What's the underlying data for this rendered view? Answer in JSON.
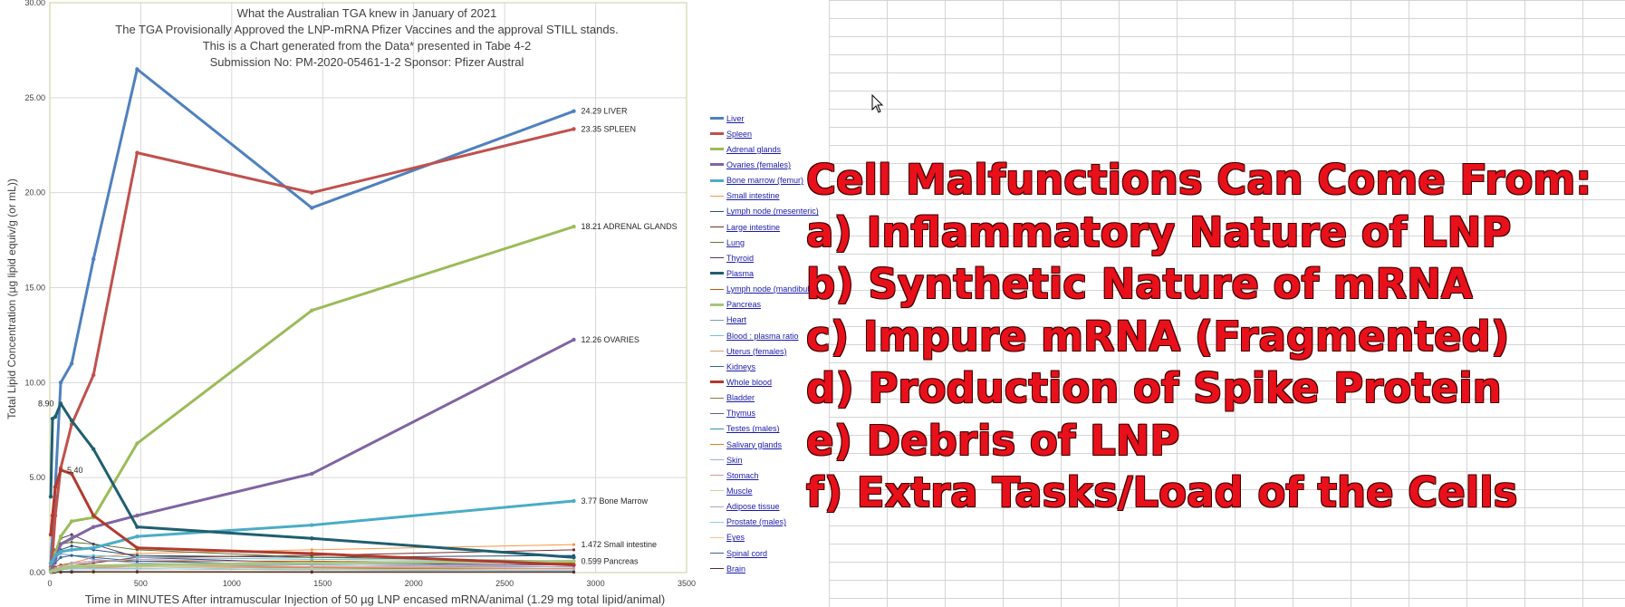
{
  "chart_data": {
    "type": "line",
    "title_lines": [
      "What the Australian TGA knew in January of 2021",
      "The TGA Provisionally Approved the LNP-mRNA Pfizer Vaccines and the approval STILL stands.",
      "This is a Chart generated from the Data* presented in Tabe 4-2",
      "Submission No: PM-2020-05461-1-2 Sponsor: Pfizer Austral"
    ],
    "xlabel": "Time in MINUTES After intramuscular Injection of 50 µg LNP encased mRNA/animal (1.29 mg total lipid/animal)",
    "ylabel": "Total Lipid Concentration (µg lipid equiv/g (or mL))",
    "xlim": [
      0,
      3500
    ],
    "ylim": [
      0,
      30
    ],
    "xticks": [
      "0",
      "500",
      "1000",
      "1500",
      "2000",
      "2500",
      "3000",
      "3500"
    ],
    "yticks": [
      "0.00",
      "5.00",
      "10.00",
      "15.00",
      "20.00",
      "25.00",
      "30.00"
    ],
    "grid": true,
    "legend_position": "right",
    "x": [
      5,
      15,
      30,
      60,
      120,
      240,
      480,
      1440,
      2880
    ],
    "series": [
      {
        "name": "Liver",
        "color": "#4f81bd",
        "width": 3,
        "values": [
          0.5,
          2.0,
          4.5,
          10.0,
          11.0,
          16.5,
          26.5,
          19.2,
          24.29
        ],
        "end_label": "24.29 LIVER"
      },
      {
        "name": "Spleen",
        "color": "#c0504d",
        "width": 3,
        "values": [
          0.3,
          1.0,
          3.0,
          5.5,
          7.8,
          10.4,
          22.1,
          20.0,
          23.35
        ],
        "end_label": "23.35 SPLEEN"
      },
      {
        "name": "Adrenal glands",
        "color": "#9bbb59",
        "width": 3,
        "values": [
          0.2,
          0.5,
          1.0,
          1.9,
          2.7,
          2.9,
          6.8,
          13.8,
          18.21
        ],
        "end_label": "18.21 ADRENAL GLANDS"
      },
      {
        "name": "Ovaries (females)",
        "color": "#8064a2",
        "width": 3,
        "values": [
          0.1,
          0.3,
          0.7,
          1.5,
          1.8,
          2.4,
          3.0,
          5.2,
          12.26
        ],
        "end_label": "12.26 OVARIES"
      },
      {
        "name": "Bone marrow (femur)",
        "color": "#4bacc6",
        "width": 3,
        "values": [
          0.5,
          0.6,
          0.9,
          1.1,
          1.2,
          1.3,
          1.9,
          2.5,
          3.77
        ],
        "end_label": "3.77 Bone Marrow"
      },
      {
        "name": "Small intestine",
        "color": "#f79646",
        "width": 1,
        "values": [
          0.05,
          0.1,
          0.2,
          0.3,
          0.5,
          0.8,
          1.0,
          1.2,
          1.472
        ],
        "end_label": "1.472 Small intestine"
      },
      {
        "name": "Lymph node (mesenteric)",
        "color": "#2c4d75",
        "width": 1,
        "values": [
          0.3,
          0.5,
          0.8,
          1.2,
          1.4,
          1.2,
          0.9,
          0.8,
          0.9
        ]
      },
      {
        "name": "Large intestine",
        "color": "#772c2a",
        "width": 1,
        "values": [
          0.05,
          0.1,
          0.2,
          0.3,
          0.4,
          0.5,
          0.8,
          0.9,
          1.2
        ]
      },
      {
        "name": "Lung",
        "color": "#5f7530",
        "width": 1,
        "values": [
          0.4,
          0.8,
          1.2,
          1.5,
          1.6,
          1.5,
          1.2,
          0.8,
          0.6
        ]
      },
      {
        "name": "Thyroid",
        "color": "#4d3b62",
        "width": 1,
        "values": [
          0.2,
          0.5,
          1.0,
          1.8,
          2.0,
          1.5,
          0.8,
          0.5,
          0.4
        ]
      },
      {
        "name": "Plasma",
        "color": "#1f5f6f",
        "width": 3,
        "values": [
          4.0,
          8.1,
          8.2,
          8.9,
          8.0,
          6.5,
          2.4,
          1.8,
          0.8
        ]
      },
      {
        "name": "Lymph node (mandibular)",
        "color": "#b65708",
        "width": 1,
        "values": [
          0.1,
          0.2,
          0.3,
          0.4,
          0.5,
          0.6,
          0.6,
          0.6,
          0.5
        ]
      },
      {
        "name": "Pancreas",
        "color": "#a9c47f",
        "width": 3,
        "values": [
          0.05,
          0.1,
          0.1,
          0.2,
          0.3,
          0.35,
          0.4,
          0.5,
          0.599
        ],
        "end_label": "0.599 Pancreas"
      },
      {
        "name": "Heart",
        "color": "#7c98c9",
        "width": 1,
        "values": [
          0.3,
          0.5,
          0.8,
          1.0,
          0.9,
          0.7,
          0.5,
          0.3,
          0.2
        ]
      },
      {
        "name": "Blood : plasma ratio",
        "color": "#6fbfd0",
        "width": 1,
        "values": [
          0.5,
          0.6,
          0.7,
          0.8,
          0.9,
          0.9,
          0.8,
          0.7,
          0.6
        ]
      },
      {
        "name": "Uterus (females)",
        "color": "#d6a070",
        "width": 1,
        "values": [
          0.05,
          0.1,
          0.2,
          0.3,
          0.4,
          0.4,
          0.4,
          0.3,
          0.3
        ]
      },
      {
        "name": "Kidneys",
        "color": "#31609b",
        "width": 1,
        "values": [
          0.1,
          0.3,
          0.5,
          0.8,
          0.9,
          0.8,
          0.6,
          0.4,
          0.3
        ]
      },
      {
        "name": "Whole blood",
        "color": "#b03a2e",
        "width": 3,
        "values": [
          2.0,
          3.0,
          4.5,
          5.4,
          5.2,
          3.0,
          1.3,
          1.0,
          0.4
        ],
        "point_label": "5.40"
      },
      {
        "name": "Bladder",
        "color": "#8a7a3c",
        "width": 1,
        "values": [
          0.02,
          0.05,
          0.1,
          0.2,
          0.3,
          0.3,
          0.3,
          0.2,
          0.2
        ]
      },
      {
        "name": "Thymus",
        "color": "#6b5a88",
        "width": 1,
        "values": [
          0.02,
          0.05,
          0.1,
          0.15,
          0.2,
          0.2,
          0.2,
          0.15,
          0.1
        ]
      },
      {
        "name": "Testes (males)",
        "color": "#2e8fa6",
        "width": 1,
        "values": [
          0.01,
          0.02,
          0.04,
          0.06,
          0.08,
          0.08,
          0.07,
          0.06,
          0.05
        ]
      },
      {
        "name": "Salivary glands",
        "color": "#e07b22",
        "width": 1,
        "values": [
          0.05,
          0.1,
          0.2,
          0.3,
          0.35,
          0.3,
          0.3,
          0.25,
          0.2
        ]
      },
      {
        "name": "Skin",
        "color": "#9bb0d6",
        "width": 1,
        "values": [
          0.01,
          0.05,
          0.1,
          0.2,
          0.3,
          0.35,
          0.4,
          0.4,
          0.3
        ]
      },
      {
        "name": "Stomach",
        "color": "#d99694",
        "width": 1,
        "values": [
          0.02,
          0.05,
          0.1,
          0.15,
          0.2,
          0.25,
          0.3,
          0.3,
          0.2
        ]
      },
      {
        "name": "Muscle",
        "color": "#c3d69b",
        "width": 1,
        "values": [
          0.05,
          0.1,
          0.2,
          0.3,
          0.4,
          0.4,
          0.3,
          0.2,
          0.1
        ]
      },
      {
        "name": "Adipose tissue",
        "color": "#b3a2c7",
        "width": 1,
        "values": [
          0.05,
          0.1,
          0.2,
          0.3,
          0.5,
          0.6,
          0.7,
          0.5,
          0.3
        ]
      },
      {
        "name": "Prostate (males)",
        "color": "#93cddd",
        "width": 1,
        "values": [
          0.02,
          0.05,
          0.1,
          0.15,
          0.2,
          0.2,
          0.2,
          0.15,
          0.1
        ]
      },
      {
        "name": "Eyes",
        "color": "#fac090",
        "width": 1,
        "values": [
          0.01,
          0.02,
          0.03,
          0.05,
          0.06,
          0.07,
          0.08,
          0.07,
          0.05
        ]
      },
      {
        "name": "Spinal cord",
        "color": "#3d5f8a",
        "width": 1,
        "values": [
          0.01,
          0.02,
          0.03,
          0.04,
          0.05,
          0.05,
          0.05,
          0.04,
          0.04
        ]
      },
      {
        "name": "Brain",
        "color": "#5a2a28",
        "width": 1,
        "values": [
          0.01,
          0.01,
          0.02,
          0.02,
          0.02,
          0.03,
          0.03,
          0.02,
          0.02
        ]
      }
    ],
    "annotations": [
      {
        "text": "8.90",
        "x": 60,
        "y": 8.9
      }
    ]
  },
  "overlay_text": [
    "Cell Malfunctions Can Come From:",
    "a) Inflammatory Nature of LNP",
    "b) Synthetic Nature of mRNA",
    "c) Impure mRNA (Fragmented)",
    "d) Production of Spike Protein",
    "e) Debris of LNP",
    "f) Extra Tasks/Load of the Cells"
  ],
  "colors": {
    "overlay_text": "#e8101a",
    "plot_border": "#c8cc9a",
    "grid": "#d9d9d9"
  }
}
